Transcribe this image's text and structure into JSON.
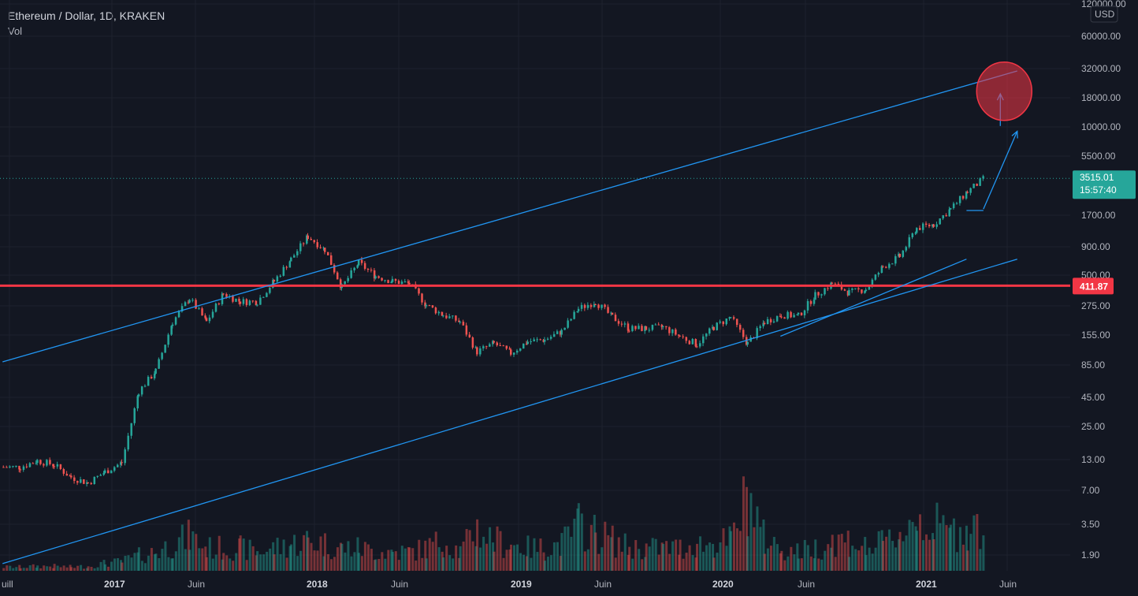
{
  "header": {
    "symbol_title": "Ethereum / Dollar, 1D, KRAKEN",
    "indicator_label": "Vol"
  },
  "price_axis": {
    "currency": "USD",
    "scale": "log",
    "ticks": [
      "120000.00",
      "60000.00",
      "32000.00",
      "18000.00",
      "10000.00",
      "5500.00",
      "1700.00",
      "900.00",
      "500.00",
      "275.00",
      "155.00",
      "85.00",
      "45.00",
      "25.00",
      "13.00",
      "7.00",
      "3.50",
      "1.90"
    ]
  },
  "time_axis": {
    "labels": [
      {
        "text": "uill",
        "bold": false
      },
      {
        "text": "2017",
        "bold": true
      },
      {
        "text": "Juin",
        "bold": false
      },
      {
        "text": "2018",
        "bold": true
      },
      {
        "text": "Juin",
        "bold": false
      },
      {
        "text": "2019",
        "bold": true
      },
      {
        "text": "Juin",
        "bold": false
      },
      {
        "text": "2020",
        "bold": true
      },
      {
        "text": "Juin",
        "bold": false
      },
      {
        "text": "2021",
        "bold": true
      },
      {
        "text": "Juin",
        "bold": false
      }
    ]
  },
  "current_price": {
    "value": "3515.01",
    "countdown": "15:57:40",
    "color": "#26a69a"
  },
  "horizontal_level": {
    "value": "411.87",
    "color": "#f23645"
  },
  "colors": {
    "background": "#131722",
    "up": "#26a69a",
    "down": "#ef5350",
    "trendline": "#2196f3",
    "target_circle": "#f23645"
  },
  "chart_data": {
    "type": "candlestick",
    "title": "Ethereum / Dollar, 1D, KRAKEN",
    "yscale": "log",
    "ylim": [
      1.5,
      160000
    ],
    "x_range": [
      "2016-07",
      "2021-07"
    ],
    "series": [
      {
        "name": "Ethereum / Dollar",
        "x": [
          "2016-07",
          "2016-08",
          "2016-09",
          "2016-10",
          "2016-11",
          "2016-12",
          "2017-01",
          "2017-02",
          "2017-03",
          "2017-04",
          "2017-05",
          "2017-06",
          "2017-07",
          "2017-08",
          "2017-09",
          "2017-10",
          "2017-11",
          "2017-12",
          "2018-01",
          "2018-02",
          "2018-03",
          "2018-04",
          "2018-05",
          "2018-06",
          "2018-07",
          "2018-08",
          "2018-09",
          "2018-10",
          "2018-11",
          "2018-12",
          "2019-01",
          "2019-02",
          "2019-03",
          "2019-04",
          "2019-05",
          "2019-06",
          "2019-07",
          "2019-08",
          "2019-09",
          "2019-10",
          "2019-11",
          "2019-12",
          "2020-01",
          "2020-02",
          "2020-03",
          "2020-04",
          "2020-05",
          "2020-06",
          "2020-07",
          "2020-08",
          "2020-09",
          "2020-10",
          "2020-11",
          "2020-12",
          "2021-01",
          "2021-02",
          "2021-03",
          "2021-04",
          "2021-05"
        ],
        "close": [
          11,
          11,
          12.5,
          11.5,
          9,
          8,
          10,
          12,
          50,
          75,
          200,
          320,
          200,
          350,
          300,
          300,
          450,
          700,
          1100,
          850,
          400,
          650,
          500,
          450,
          430,
          280,
          230,
          200,
          110,
          130,
          107,
          135,
          140,
          165,
          260,
          300,
          220,
          175,
          175,
          180,
          150,
          128,
          180,
          220,
          130,
          200,
          230,
          225,
          340,
          430,
          360,
          385,
          600,
          740,
          1300,
          1400,
          1900,
          2700,
          3515
        ]
      }
    ],
    "volume_relative": [
      0.05,
      0.05,
      0.06,
      0.06,
      0.05,
      0.06,
      0.1,
      0.12,
      0.2,
      0.25,
      0.35,
      0.45,
      0.3,
      0.3,
      0.3,
      0.25,
      0.3,
      0.35,
      0.4,
      0.35,
      0.3,
      0.3,
      0.25,
      0.25,
      0.25,
      0.3,
      0.4,
      0.25,
      0.55,
      0.4,
      0.35,
      0.3,
      0.3,
      0.35,
      0.6,
      0.5,
      0.4,
      0.3,
      0.3,
      0.3,
      0.3,
      0.35,
      0.35,
      0.4,
      1.0,
      0.4,
      0.3,
      0.25,
      0.3,
      0.4,
      0.4,
      0.3,
      0.35,
      0.5,
      0.7,
      0.6,
      0.5,
      0.6,
      0.55
    ],
    "horizontal_line": 411.87,
    "last_price": 3515.01,
    "trendlines": [
      {
        "from": [
          "2016-07",
          90
        ],
        "to": [
          "2021-07",
          30000
        ]
      },
      {
        "from": [
          "2016-07",
          1.6
        ],
        "to": [
          "2021-07",
          700
        ]
      },
      {
        "from": [
          "2020-05",
          150
        ],
        "to": [
          "2021-04",
          700
        ]
      },
      {
        "from": [
          "2021-04",
          1850
        ],
        "to": [
          "2021-05",
          1850
        ]
      }
    ],
    "arrows": [
      {
        "from": [
          "2021-05",
          1900
        ],
        "to": [
          "2021-07",
          9000
        ]
      },
      {
        "from": [
          "2021-06",
          10000
        ],
        "to": [
          "2021-06",
          19000
        ]
      }
    ],
    "target_zone": {
      "x": "2021-06",
      "y": 20000
    }
  }
}
